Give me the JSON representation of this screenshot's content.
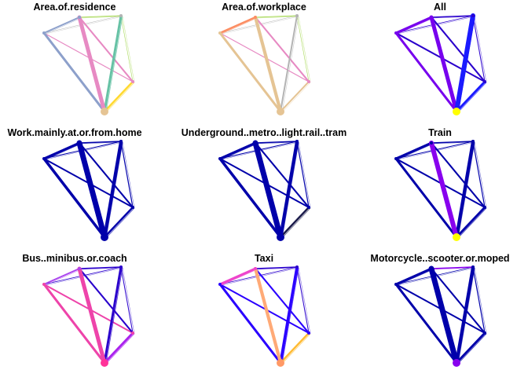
{
  "chart_data": {
    "type": "network",
    "layout": "3x3 grid of small-multiple flow maps over the same five nodes",
    "nodes": [
      "n1",
      "n2",
      "n3",
      "n4",
      "n5"
    ],
    "edge_shape": "straight lines between every pair of the five nodes, stroke width proportional to flow",
    "panels": [
      {
        "title": "Area.of.residence",
        "node_color": "#e5c494",
        "edges": [
          {
            "a": 0,
            "b": 4,
            "w": 3.0,
            "color": "#8da0cb"
          },
          {
            "a": 0,
            "b": 1,
            "w": 2.0,
            "color": "#8da0cb"
          },
          {
            "a": 0,
            "b": 2,
            "w": 0.5,
            "color": "#b3b3b3"
          },
          {
            "a": 0,
            "b": 3,
            "w": 1.2,
            "color": "#e78ac3"
          },
          {
            "a": 1,
            "b": 4,
            "w": 5.0,
            "color": "#e78ac3"
          },
          {
            "a": 1,
            "b": 2,
            "w": 1.0,
            "color": "#a6d854"
          },
          {
            "a": 1,
            "b": 3,
            "w": 2.0,
            "color": "#e78ac3"
          },
          {
            "a": 2,
            "b": 4,
            "w": 3.0,
            "color": "#66c2a5"
          },
          {
            "a": 2,
            "b": 3,
            "w": 0.6,
            "color": "#a6d854"
          },
          {
            "a": 3,
            "b": 4,
            "w": 2.5,
            "color": "#ffd92f"
          }
        ]
      },
      {
        "title": "Area.of.workplace",
        "node_color": "#e5c494",
        "edges": [
          {
            "a": 0,
            "b": 4,
            "w": 3.0,
            "color": "#e5c494"
          },
          {
            "a": 0,
            "b": 1,
            "w": 2.5,
            "color": "#fc8d62"
          },
          {
            "a": 0,
            "b": 2,
            "w": 0.5,
            "color": "#b3b3b3"
          },
          {
            "a": 0,
            "b": 3,
            "w": 1.2,
            "color": "#e78ac3"
          },
          {
            "a": 1,
            "b": 4,
            "w": 4.0,
            "color": "#e5c494"
          },
          {
            "a": 1,
            "b": 2,
            "w": 1.0,
            "color": "#a6d854"
          },
          {
            "a": 1,
            "b": 3,
            "w": 2.0,
            "color": "#e78ac3"
          },
          {
            "a": 2,
            "b": 4,
            "w": 2.0,
            "color": "#b3b3b3"
          },
          {
            "a": 2,
            "b": 3,
            "w": 0.6,
            "color": "#a6d854"
          },
          {
            "a": 3,
            "b": 4,
            "w": 2.0,
            "color": "#e5c494"
          }
        ]
      },
      {
        "title": "All",
        "node_color": "#ffff00",
        "edges": [
          {
            "a": 0,
            "b": 4,
            "w": 3.0,
            "color": "#7700ee"
          },
          {
            "a": 0,
            "b": 1,
            "w": 3.0,
            "color": "#7700ee"
          },
          {
            "a": 0,
            "b": 2,
            "w": 0.8,
            "color": "#2a00cc"
          },
          {
            "a": 0,
            "b": 3,
            "w": 2.0,
            "color": "#2a00cc"
          },
          {
            "a": 1,
            "b": 4,
            "w": 5.0,
            "color": "#7700ee"
          },
          {
            "a": 1,
            "b": 2,
            "w": 1.5,
            "color": "#2a00cc"
          },
          {
            "a": 1,
            "b": 3,
            "w": 2.0,
            "color": "#2a00cc"
          },
          {
            "a": 2,
            "b": 4,
            "w": 6.0,
            "color": "#1a1aff"
          },
          {
            "a": 2,
            "b": 3,
            "w": 1.0,
            "color": "#2a00cc"
          },
          {
            "a": 3,
            "b": 4,
            "w": 3.0,
            "color": "#1a1aff"
          }
        ]
      },
      {
        "title": "Work.mainly.at.or.from.home",
        "node_color": "#0000aa",
        "edges": [
          {
            "a": 0,
            "b": 4,
            "w": 3.5,
            "color": "#0000aa"
          },
          {
            "a": 0,
            "b": 1,
            "w": 3.0,
            "color": "#0000aa"
          },
          {
            "a": 0,
            "b": 2,
            "w": 1.0,
            "color": "#0000aa"
          },
          {
            "a": 0,
            "b": 3,
            "w": 2.0,
            "color": "#0000aa"
          },
          {
            "a": 1,
            "b": 4,
            "w": 7.0,
            "color": "#0000aa"
          },
          {
            "a": 1,
            "b": 2,
            "w": 1.5,
            "color": "#0000aa"
          },
          {
            "a": 1,
            "b": 3,
            "w": 2.0,
            "color": "#0000aa"
          },
          {
            "a": 2,
            "b": 4,
            "w": 4.0,
            "color": "#0000aa"
          },
          {
            "a": 2,
            "b": 3,
            "w": 1.2,
            "color": "#0000aa"
          },
          {
            "a": 3,
            "b": 4,
            "w": 2.5,
            "color": "#0000aa"
          }
        ]
      },
      {
        "title": "Underground..metro..light.rail..tram",
        "node_color": "#0000aa",
        "edges": [
          {
            "a": 0,
            "b": 4,
            "w": 3.5,
            "color": "#0000aa"
          },
          {
            "a": 0,
            "b": 1,
            "w": 3.0,
            "color": "#0000aa"
          },
          {
            "a": 0,
            "b": 2,
            "w": 1.0,
            "color": "#0000aa"
          },
          {
            "a": 0,
            "b": 3,
            "w": 2.0,
            "color": "#0000aa"
          },
          {
            "a": 1,
            "b": 4,
            "w": 7.0,
            "color": "#0000aa"
          },
          {
            "a": 1,
            "b": 2,
            "w": 1.5,
            "color": "#0000aa"
          },
          {
            "a": 1,
            "b": 3,
            "w": 2.0,
            "color": "#0000aa"
          },
          {
            "a": 2,
            "b": 4,
            "w": 4.0,
            "color": "#0000aa"
          },
          {
            "a": 2,
            "b": 3,
            "w": 1.2,
            "color": "#0000aa"
          },
          {
            "a": 3,
            "b": 4,
            "w": 2.5,
            "color": "#1a1a4a"
          }
        ]
      },
      {
        "title": "Train",
        "node_color": "#ffff00",
        "edges": [
          {
            "a": 0,
            "b": 4,
            "w": 3.0,
            "color": "#0000aa"
          },
          {
            "a": 0,
            "b": 1,
            "w": 3.0,
            "color": "#0000aa"
          },
          {
            "a": 0,
            "b": 2,
            "w": 1.0,
            "color": "#0000aa"
          },
          {
            "a": 0,
            "b": 3,
            "w": 2.0,
            "color": "#0000aa"
          },
          {
            "a": 1,
            "b": 4,
            "w": 6.0,
            "color": "#8800ee"
          },
          {
            "a": 1,
            "b": 2,
            "w": 1.5,
            "color": "#0000aa"
          },
          {
            "a": 1,
            "b": 3,
            "w": 2.0,
            "color": "#0000aa"
          },
          {
            "a": 2,
            "b": 4,
            "w": 4.0,
            "color": "#0000aa"
          },
          {
            "a": 2,
            "b": 3,
            "w": 1.2,
            "color": "#0000aa"
          },
          {
            "a": 3,
            "b": 4,
            "w": 3.0,
            "color": "#0000aa"
          }
        ]
      },
      {
        "title": "Bus..minibus.or.coach",
        "node_color": "#ff3399",
        "edges": [
          {
            "a": 0,
            "b": 4,
            "w": 3.0,
            "color": "#ee44aa"
          },
          {
            "a": 0,
            "b": 1,
            "w": 2.0,
            "color": "#aa44ee"
          },
          {
            "a": 0,
            "b": 2,
            "w": 0.8,
            "color": "#2a00cc"
          },
          {
            "a": 0,
            "b": 3,
            "w": 2.0,
            "color": "#ee44aa"
          },
          {
            "a": 1,
            "b": 4,
            "w": 5.0,
            "color": "#ee44aa"
          },
          {
            "a": 1,
            "b": 2,
            "w": 1.5,
            "color": "#2a00cc"
          },
          {
            "a": 1,
            "b": 3,
            "w": 2.0,
            "color": "#2a00cc"
          },
          {
            "a": 2,
            "b": 4,
            "w": 3.0,
            "color": "#2a00cc"
          },
          {
            "a": 2,
            "b": 3,
            "w": 1.0,
            "color": "#2a00cc"
          },
          {
            "a": 3,
            "b": 4,
            "w": 3.0,
            "color": "#aa22ee"
          }
        ]
      },
      {
        "title": "Taxi",
        "node_color": "#ff9966",
        "edges": [
          {
            "a": 0,
            "b": 4,
            "w": 3.0,
            "color": "#2a00ff"
          },
          {
            "a": 0,
            "b": 1,
            "w": 3.0,
            "color": "#ee44cc"
          },
          {
            "a": 0,
            "b": 2,
            "w": 0.8,
            "color": "#2a00cc"
          },
          {
            "a": 0,
            "b": 3,
            "w": 2.0,
            "color": "#2a00ff"
          },
          {
            "a": 1,
            "b": 4,
            "w": 4.0,
            "color": "#ffaa77"
          },
          {
            "a": 1,
            "b": 2,
            "w": 1.5,
            "color": "#2a00cc"
          },
          {
            "a": 1,
            "b": 3,
            "w": 2.0,
            "color": "#2a00ff"
          },
          {
            "a": 2,
            "b": 4,
            "w": 3.5,
            "color": "#2a00ff"
          },
          {
            "a": 2,
            "b": 3,
            "w": 1.0,
            "color": "#2a00cc"
          },
          {
            "a": 3,
            "b": 4,
            "w": 2.5,
            "color": "#ffbb33"
          }
        ]
      },
      {
        "title": "Motorcycle..scooter.or.moped",
        "node_color": "#8800ee",
        "edges": [
          {
            "a": 0,
            "b": 4,
            "w": 3.0,
            "color": "#0000aa"
          },
          {
            "a": 0,
            "b": 1,
            "w": 3.0,
            "color": "#0000aa"
          },
          {
            "a": 0,
            "b": 2,
            "w": 0.8,
            "color": "#0000aa"
          },
          {
            "a": 0,
            "b": 3,
            "w": 2.0,
            "color": "#0000aa"
          },
          {
            "a": 1,
            "b": 4,
            "w": 7.0,
            "color": "#0000aa"
          },
          {
            "a": 1,
            "b": 2,
            "w": 1.5,
            "color": "#8800ee"
          },
          {
            "a": 1,
            "b": 3,
            "w": 2.0,
            "color": "#0000aa"
          },
          {
            "a": 2,
            "b": 4,
            "w": 4.0,
            "color": "#0000aa"
          },
          {
            "a": 2,
            "b": 3,
            "w": 1.2,
            "color": "#0000aa"
          },
          {
            "a": 3,
            "b": 4,
            "w": 3.0,
            "color": "#0000aa"
          }
        ]
      }
    ]
  }
}
